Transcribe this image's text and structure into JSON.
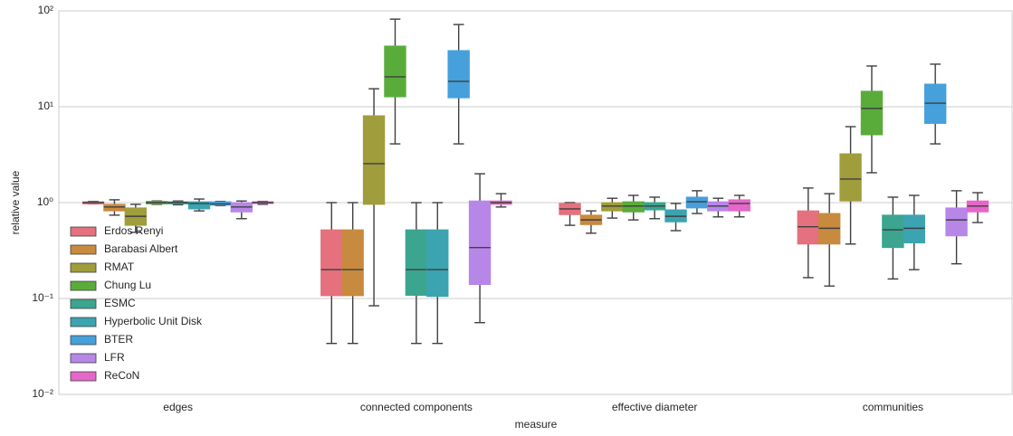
{
  "chart_data": {
    "type": "boxplot",
    "xlabel": "measure",
    "ylabel": "relative value",
    "categories": [
      "edges",
      "connected components",
      "effective diameter",
      "communities"
    ],
    "log_scale": true,
    "ylim": [
      0.01,
      100
    ],
    "yticks": [
      {
        "value": 0.01,
        "label": "10⁻²"
      },
      {
        "value": 0.1,
        "label": "10⁻¹"
      },
      {
        "value": 1,
        "label": "10⁰"
      },
      {
        "value": 10,
        "label": "10¹"
      },
      {
        "value": 100,
        "label": "10²"
      }
    ],
    "grid": true,
    "legend_position": "lower left",
    "series": [
      {
        "name": "Erdos Renyi",
        "color": "#e5707e",
        "whislo": [
          0.97,
          0.034,
          0.58,
          0.165
        ],
        "q1": [
          0.97,
          0.107,
          0.75,
          0.37
        ],
        "med": [
          1.0,
          0.2,
          0.86,
          0.56
        ],
        "q3": [
          1.02,
          0.52,
          0.98,
          0.82
        ],
        "whishi": [
          1.03,
          1.0,
          1.0,
          1.42
        ]
      },
      {
        "name": "Barabasi Albert",
        "color": "#c88a3f",
        "whislo": [
          0.74,
          0.034,
          0.48,
          0.135
        ],
        "q1": [
          0.82,
          0.107,
          0.59,
          0.37
        ],
        "med": [
          0.9,
          0.2,
          0.66,
          0.54
        ],
        "q3": [
          0.96,
          0.52,
          0.74,
          0.77
        ],
        "whishi": [
          1.07,
          1.0,
          0.82,
          1.24
        ]
      },
      {
        "name": "RMAT",
        "color": "#a09d3c",
        "whislo": [
          0.49,
          0.084,
          0.69,
          0.37
        ],
        "q1": [
          0.58,
          0.96,
          0.82,
          1.04
        ],
        "med": [
          0.72,
          2.55,
          0.92,
          1.76
        ],
        "q3": [
          0.88,
          8.05,
          1.0,
          3.23
        ],
        "whishi": [
          0.96,
          15.4,
          1.11,
          6.2
        ]
      },
      {
        "name": "Chung Lu",
        "color": "#5aac3a",
        "whislo": [
          0.96,
          4.1,
          0.66,
          2.05
        ],
        "q1": [
          0.97,
          12.7,
          0.8,
          5.1
        ],
        "med": [
          1.0,
          20.5,
          0.92,
          9.6
        ],
        "q3": [
          1.03,
          42.9,
          1.02,
          14.5
        ],
        "whishi": [
          1.04,
          82,
          1.19,
          26.6
        ]
      },
      {
        "name": "ESMC",
        "color": "#3ba58f",
        "whislo": [
          0.95,
          0.034,
          0.68,
          0.16
        ],
        "q1": [
          0.97,
          0.108,
          0.84,
          0.34
        ],
        "med": [
          1.0,
          0.2,
          0.92,
          0.52
        ],
        "q3": [
          1.02,
          0.52,
          1.0,
          0.74
        ],
        "whishi": [
          1.04,
          1.0,
          1.14,
          1.14
        ]
      },
      {
        "name": "Hyperbolic Unit Disk",
        "color": "#3ba4b0",
        "whislo": [
          0.82,
          0.034,
          0.51,
          0.2
        ],
        "q1": [
          0.86,
          0.105,
          0.63,
          0.38
        ],
        "med": [
          0.98,
          0.2,
          0.72,
          0.54
        ],
        "q3": [
          1.02,
          0.52,
          0.84,
          0.74
        ],
        "whishi": [
          1.09,
          1.0,
          0.98,
          1.19
        ]
      },
      {
        "name": "BTER",
        "color": "#45a0dc",
        "whislo": [
          0.93,
          4.1,
          0.77,
          4.1
        ],
        "q1": [
          0.94,
          12.4,
          0.88,
          6.7
        ],
        "med": [
          0.97,
          18.4,
          1.02,
          10.9
        ],
        "q3": [
          1.02,
          38.5,
          1.14,
          17.2
        ],
        "whishi": [
          1.03,
          72,
          1.33,
          27.8
        ]
      },
      {
        "name": "LFR",
        "color": "#b787e8",
        "whislo": [
          0.68,
          0.056,
          0.71,
          0.23
        ],
        "q1": [
          0.8,
          0.14,
          0.82,
          0.45
        ],
        "med": [
          0.9,
          0.34,
          0.92,
          0.66
        ],
        "q3": [
          1.0,
          1.04,
          1.02,
          0.88
        ],
        "whishi": [
          1.04,
          2.0,
          1.11,
          1.33
        ]
      },
      {
        "name": "ReCoN",
        "color": "#e567c9",
        "whislo": [
          0.96,
          0.9,
          0.71,
          0.62
        ],
        "q1": [
          0.98,
          0.96,
          0.82,
          0.8
        ],
        "med": [
          1.0,
          1.0,
          0.98,
          0.92
        ],
        "q3": [
          1.02,
          1.04,
          1.07,
          1.04
        ],
        "whishi": [
          1.03,
          1.24,
          1.19,
          1.27
        ]
      }
    ]
  }
}
